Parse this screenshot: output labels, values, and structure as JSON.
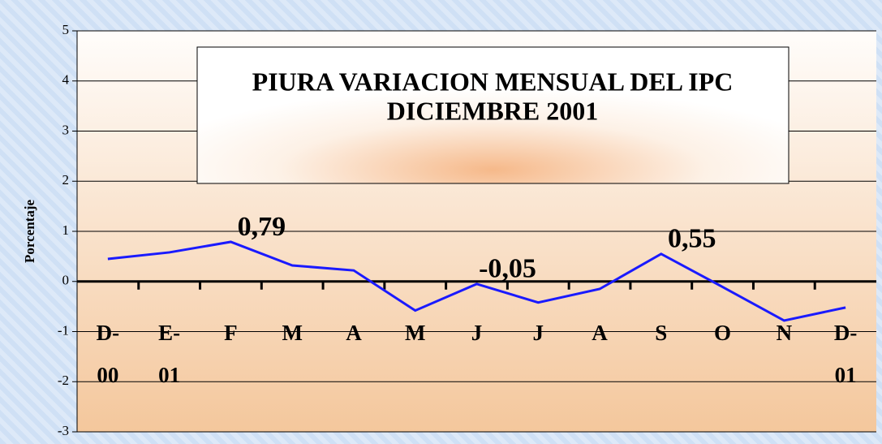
{
  "chart_data": {
    "type": "line",
    "title": "PIURA VARIACION MENSUAL DEL IPC",
    "subtitle": "DICIEMBRE 2001",
    "y_label": "Porcentaje",
    "categories": [
      "D-00",
      "E-01",
      "F",
      "M",
      "A",
      "M",
      "J",
      "J",
      "A",
      "S",
      "O",
      "N",
      "D-01"
    ],
    "series": [
      {
        "name": "IPC",
        "color": "#1a1aff",
        "values": [
          0.45,
          0.58,
          0.79,
          0.32,
          0.22,
          -0.58,
          -0.05,
          -0.42,
          -0.15,
          0.55,
          -0.11,
          -0.78,
          -0.52
        ],
        "value_labels": [
          null,
          null,
          "0,79",
          null,
          null,
          null,
          "-0,05",
          null,
          null,
          "0,55",
          null,
          null,
          null
        ]
      }
    ],
    "ylim": [
      -3,
      5
    ],
    "yticks": [
      -3,
      -2,
      -1,
      0,
      1,
      2,
      3,
      4,
      5
    ],
    "grid": true
  }
}
